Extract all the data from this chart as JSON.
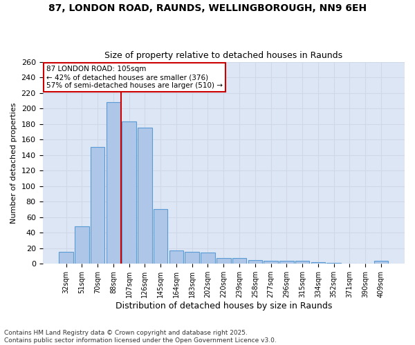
{
  "title1": "87, LONDON ROAD, RAUNDS, WELLINGBOROUGH, NN9 6EH",
  "title2": "Size of property relative to detached houses in Raunds",
  "xlabel": "Distribution of detached houses by size in Raunds",
  "ylabel": "Number of detached properties",
  "categories": [
    "32sqm",
    "51sqm",
    "70sqm",
    "88sqm",
    "107sqm",
    "126sqm",
    "145sqm",
    "164sqm",
    "183sqm",
    "202sqm",
    "220sqm",
    "239sqm",
    "258sqm",
    "277sqm",
    "296sqm",
    "315sqm",
    "334sqm",
    "352sqm",
    "371sqm",
    "390sqm",
    "409sqm"
  ],
  "values": [
    15,
    48,
    150,
    208,
    183,
    175,
    70,
    17,
    15,
    14,
    7,
    7,
    5,
    4,
    4,
    4,
    2,
    1,
    0,
    0,
    4
  ],
  "bar_color": "#aec6e8",
  "bar_edge_color": "#5b9bd5",
  "annotation_text": "87 LONDON ROAD: 105sqm\n← 42% of detached houses are smaller (376)\n57% of semi-detached houses are larger (510) →",
  "annotation_box_color": "#ffffff",
  "annotation_box_edge_color": "#cc0000",
  "vline_color": "#cc0000",
  "grid_color": "#d0d8e8",
  "plot_bg_color": "#dce6f5",
  "fig_bg_color": "#ffffff",
  "footer_text": "Contains HM Land Registry data © Crown copyright and database right 2025.\nContains public sector information licensed under the Open Government Licence v3.0.",
  "ylim": [
    0,
    260
  ],
  "yticks": [
    0,
    20,
    40,
    60,
    80,
    100,
    120,
    140,
    160,
    180,
    200,
    220,
    240,
    260
  ]
}
